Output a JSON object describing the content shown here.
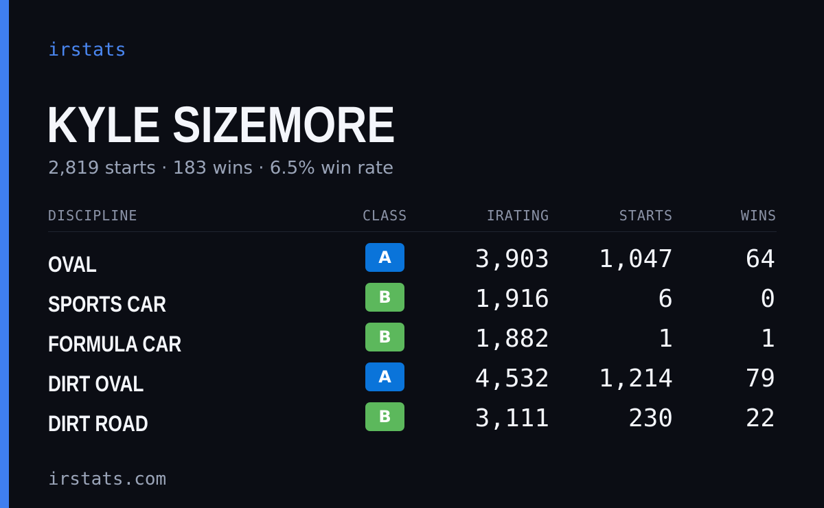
{
  "brand": {
    "label": "irstats",
    "color": "#4a86f0"
  },
  "accent_color": "#3f7ff0",
  "driver": {
    "name": "KYLE SIZEMORE",
    "summary": "2,819 starts · 183 wins · 6.5% win rate"
  },
  "table": {
    "headers": {
      "discipline": "DISCIPLINE",
      "class": "CLASS",
      "irating": "IRATING",
      "starts": "STARTS",
      "wins": "WINS"
    },
    "rows": [
      {
        "discipline": "OVAL",
        "class": "A",
        "irating": "3,903",
        "starts": "1,047",
        "wins": "64"
      },
      {
        "discipline": "SPORTS CAR",
        "class": "B",
        "irating": "1,916",
        "starts": "6",
        "wins": "0"
      },
      {
        "discipline": "FORMULA CAR",
        "class": "B",
        "irating": "1,882",
        "starts": "1",
        "wins": "1"
      },
      {
        "discipline": "DIRT OVAL",
        "class": "A",
        "irating": "4,532",
        "starts": "1,214",
        "wins": "79"
      },
      {
        "discipline": "DIRT ROAD",
        "class": "B",
        "irating": "3,111",
        "starts": "230",
        "wins": "22"
      }
    ]
  },
  "class_colors": {
    "A": "#0a74da",
    "B": "#5cb85c"
  },
  "footer": {
    "url": "irstats.com"
  }
}
